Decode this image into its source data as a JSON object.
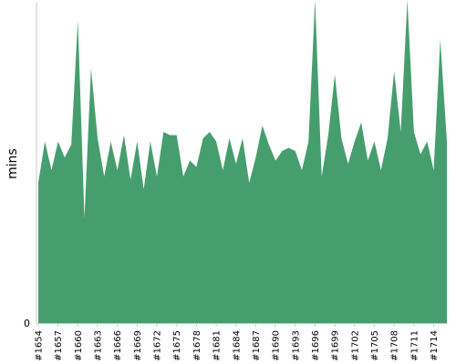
{
  "chart_data": {
    "type": "area",
    "ylabel": "mins",
    "y_tick_labels": [
      "0"
    ],
    "ylim": [
      0,
      100
    ],
    "color": "#469e6e",
    "x_tick_labels": [
      "#1654",
      "#1657",
      "#1660",
      "#1663",
      "#1666",
      "#1669",
      "#1672",
      "#1675",
      "#1678",
      "#1681",
      "#1684",
      "#1687",
      "#1690",
      "#1693",
      "#1696",
      "#1699",
      "#1702",
      "#1705",
      "#1708",
      "#1711",
      "#1714"
    ],
    "x_start": 1654,
    "x_end": 1716,
    "values": [
      44,
      57,
      48,
      57,
      52,
      56,
      95,
      33,
      80,
      58,
      46,
      57,
      48,
      59,
      45,
      57,
      42,
      57,
      46,
      60,
      59,
      59,
      46,
      51,
      49,
      58,
      60,
      57,
      48,
      58,
      50,
      58,
      44,
      52,
      62,
      56,
      51,
      54,
      55,
      54,
      48,
      57,
      105,
      46,
      59,
      78,
      58,
      50,
      57,
      63,
      51,
      57,
      48,
      58,
      79,
      60,
      102,
      60,
      53,
      57,
      48,
      89,
      57
    ]
  }
}
